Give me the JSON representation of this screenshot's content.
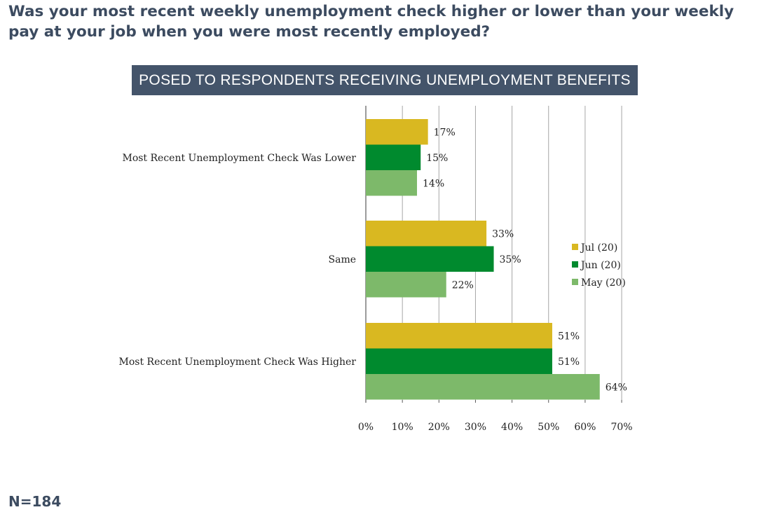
{
  "title": "Was your most recent weekly unemployment check higher or lower than your weekly pay at your job when you were most recently employed?",
  "banner": "POSED TO RESPONDENTS RECEIVING UNEMPLOYMENT BENEFITS",
  "footnote": "N=184",
  "chart_data": {
    "type": "bar",
    "orientation": "horizontal",
    "categories": [
      "Most Recent Unemployment Check Was Lower",
      "Same",
      "Most Recent Unemployment Check Was Higher"
    ],
    "series": [
      {
        "name": "Jul (20)",
        "color": "#d9b821",
        "values": [
          17,
          33,
          51
        ],
        "labels": [
          "17%",
          "33%",
          "51%"
        ]
      },
      {
        "name": "Jun (20)",
        "color": "#008a2e",
        "values": [
          15,
          35,
          51
        ],
        "labels": [
          "15%",
          "35%",
          "51%"
        ]
      },
      {
        "name": "May (20)",
        "color": "#7db96a",
        "values": [
          14,
          22,
          64
        ],
        "labels": [
          "14%",
          "22%",
          "64%"
        ]
      }
    ],
    "xlim": [
      0,
      70
    ],
    "x_ticks": [
      "0%",
      "10%",
      "20%",
      "30%",
      "40%",
      "50%",
      "60%",
      "70%"
    ],
    "grid": true,
    "legend_position": "right"
  }
}
